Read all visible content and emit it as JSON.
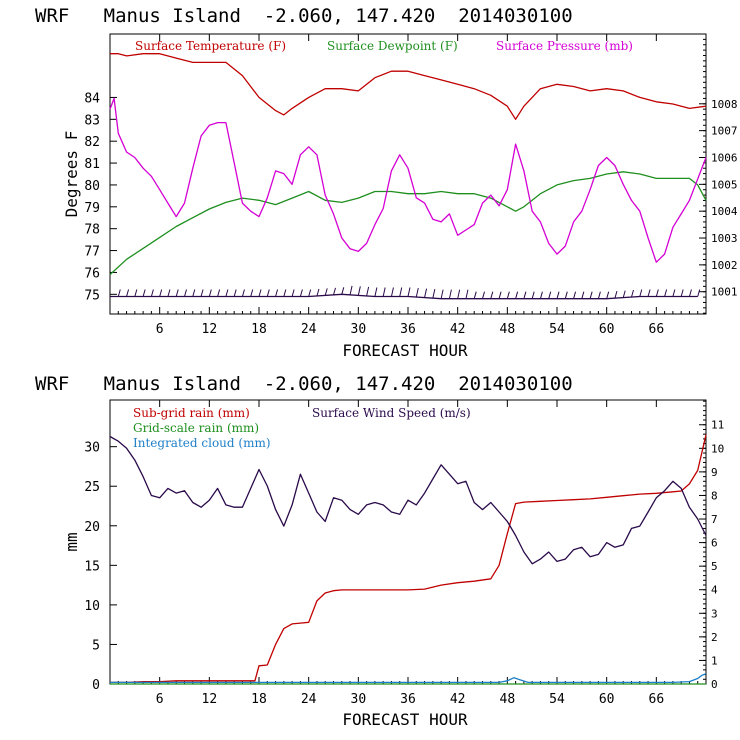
{
  "colors": {
    "temperature": "#c00000",
    "dewpoint": "#1f8f1f",
    "pressure": "#d400d4",
    "wind": "#2a0a4a",
    "subgrid": "#c00000",
    "gridscale": "#1f8f1f",
    "cloud": "#1e7fc8"
  },
  "chart_data": [
    {
      "type": "line",
      "title": "WRF   Manus Island  -2.060, 147.420  2014030100",
      "xlabel": "FORECAST HOUR",
      "ylabel": "Degrees F",
      "xlim": [
        0,
        72
      ],
      "ylim": [
        74.1,
        86.9
      ],
      "y2lim": [
        1000.17,
        1010.6
      ],
      "xticks": [
        "6",
        "12",
        "18",
        "24",
        "30",
        "36",
        "42",
        "48",
        "54",
        "60",
        "66"
      ],
      "yticks": [
        "75",
        "76",
        "77",
        "78",
        "79",
        "80",
        "81",
        "82",
        "83",
        "84"
      ],
      "y2ticks": [
        "1001",
        "1002",
        "1003",
        "1004",
        "1005",
        "1006",
        "1007",
        "1008"
      ],
      "legend_placement": "top",
      "series": [
        {
          "name": "Surface Temperature (F)",
          "axis": "left",
          "color_key": "temperature",
          "x": [
            0,
            1,
            2,
            4,
            6,
            8,
            10,
            12,
            14,
            16,
            18,
            20,
            21,
            22,
            24,
            26,
            28,
            30,
            32,
            34,
            36,
            38,
            40,
            42,
            44,
            46,
            48,
            49,
            50,
            52,
            54,
            56,
            58,
            60,
            62,
            64,
            66,
            68,
            70,
            72
          ],
          "y": [
            86.0,
            86.0,
            85.9,
            86.0,
            86.0,
            85.8,
            85.6,
            85.6,
            85.6,
            85.0,
            84.0,
            83.4,
            83.2,
            83.5,
            84.0,
            84.4,
            84.4,
            84.3,
            84.9,
            85.2,
            85.2,
            85.0,
            84.8,
            84.6,
            84.4,
            84.1,
            83.6,
            83.0,
            83.6,
            84.4,
            84.6,
            84.5,
            84.3,
            84.4,
            84.3,
            84.0,
            83.8,
            83.7,
            83.5,
            83.6
          ]
        },
        {
          "name": "Surface Dewpoint (F)",
          "axis": "left",
          "color_key": "dewpoint",
          "x": [
            0,
            2,
            4,
            6,
            8,
            10,
            12,
            14,
            16,
            18,
            20,
            22,
            24,
            26,
            28,
            30,
            32,
            34,
            36,
            38,
            40,
            42,
            44,
            46,
            48,
            49,
            50,
            52,
            54,
            56,
            58,
            60,
            62,
            64,
            66,
            68,
            70,
            71,
            72
          ],
          "y": [
            75.9,
            76.6,
            77.1,
            77.6,
            78.1,
            78.5,
            78.9,
            79.2,
            79.4,
            79.3,
            79.1,
            79.4,
            79.7,
            79.3,
            79.2,
            79.4,
            79.7,
            79.7,
            79.6,
            79.6,
            79.7,
            79.6,
            79.6,
            79.4,
            79.0,
            78.8,
            79.0,
            79.6,
            80.0,
            80.2,
            80.3,
            80.5,
            80.6,
            80.5,
            80.3,
            80.3,
            80.3,
            80.0,
            79.3
          ]
        },
        {
          "name": "Surface Pressure (mb)",
          "axis": "right",
          "color_key": "pressure",
          "x": [
            0,
            0.5,
            1,
            2,
            3,
            4,
            5,
            6,
            7,
            8,
            9,
            10,
            11,
            12,
            13,
            14,
            15,
            16,
            17,
            18,
            19,
            20,
            21,
            22,
            23,
            24,
            25,
            26,
            27,
            28,
            29,
            30,
            31,
            32,
            33,
            34,
            35,
            36,
            37,
            38,
            39,
            40,
            41,
            42,
            43,
            44,
            45,
            46,
            47,
            48,
            49,
            50,
            51,
            52,
            53,
            54,
            55,
            56,
            57,
            58,
            59,
            60,
            61,
            62,
            63,
            64,
            65,
            66,
            67,
            68,
            69,
            70,
            71,
            72
          ],
          "y": [
            1007.8,
            1008.2,
            1006.9,
            1006.2,
            1006.0,
            1005.6,
            1005.3,
            1004.8,
            1004.3,
            1003.8,
            1004.3,
            1005.6,
            1006.8,
            1007.2,
            1007.3,
            1007.3,
            1005.8,
            1004.3,
            1004.0,
            1003.8,
            1004.5,
            1005.5,
            1005.4,
            1005.0,
            1006.1,
            1006.4,
            1006.1,
            1004.6,
            1003.9,
            1003.0,
            1002.6,
            1002.5,
            1002.8,
            1003.5,
            1004.1,
            1005.5,
            1006.1,
            1005.6,
            1004.5,
            1004.3,
            1003.7,
            1003.6,
            1003.9,
            1003.1,
            1003.3,
            1003.5,
            1004.3,
            1004.6,
            1004.2,
            1004.8,
            1006.5,
            1005.5,
            1004.0,
            1003.6,
            1002.8,
            1002.4,
            1002.7,
            1003.6,
            1004.0,
            1004.8,
            1005.7,
            1006.0,
            1005.7,
            1005.0,
            1004.4,
            1004.0,
            1003.0,
            1002.1,
            1002.4,
            1003.4,
            1003.9,
            1004.4,
            1005.2,
            1006.0
          ]
        },
        {
          "name": "",
          "axis": "left",
          "color_key": "wind",
          "barbs": true,
          "x": [
            0,
            4,
            8,
            12,
            16,
            20,
            24,
            28,
            32,
            36,
            40,
            44,
            48,
            52,
            56,
            60,
            64,
            68,
            71
          ],
          "y": [
            74.9,
            74.9,
            74.9,
            74.9,
            74.9,
            74.9,
            74.9,
            75.0,
            74.9,
            74.9,
            74.8,
            74.8,
            74.8,
            74.8,
            74.8,
            74.8,
            74.9,
            74.9,
            74.9
          ]
        }
      ]
    },
    {
      "type": "line",
      "title": "WRF   Manus Island  -2.060, 147.420  2014030100",
      "xlabel": "FORECAST HOUR",
      "ylabel": "mm",
      "xlim": [
        0,
        72
      ],
      "ylim": [
        0,
        35.9
      ],
      "y2lim": [
        0,
        12.05
      ],
      "xticks": [
        "6",
        "12",
        "18",
        "24",
        "30",
        "36",
        "42",
        "48",
        "54",
        "60",
        "66"
      ],
      "yticks": [
        "0",
        "5",
        "10",
        "15",
        "20",
        "25",
        "30"
      ],
      "y2ticks": [
        "0",
        "1",
        "2",
        "3",
        "4",
        "5",
        "6",
        "7",
        "8",
        "9",
        "10",
        "11"
      ],
      "legend_placement": "top-left",
      "series": [
        {
          "name": "Sub-grid rain (mm)",
          "axis": "left",
          "color_key": "subgrid",
          "x": [
            0,
            2,
            4,
            6,
            8,
            10,
            12,
            14,
            16,
            17.5,
            18,
            19,
            20,
            21,
            22,
            23,
            24,
            25,
            26,
            27,
            28,
            30,
            32,
            34,
            36,
            38,
            40,
            42,
            44,
            46,
            47,
            48,
            49,
            50,
            52,
            54,
            56,
            58,
            60,
            62,
            64,
            66,
            68,
            69,
            70,
            71,
            72
          ],
          "y": [
            0.2,
            0.2,
            0.3,
            0.3,
            0.4,
            0.4,
            0.4,
            0.4,
            0.4,
            0.4,
            2.3,
            2.4,
            5.0,
            7.0,
            7.6,
            7.7,
            7.8,
            10.5,
            11.5,
            11.8,
            11.9,
            11.9,
            11.9,
            11.9,
            11.9,
            12.0,
            12.5,
            12.8,
            13.0,
            13.3,
            15.0,
            19.0,
            22.8,
            23.0,
            23.1,
            23.2,
            23.3,
            23.4,
            23.6,
            23.8,
            24.0,
            24.1,
            24.3,
            24.4,
            25.3,
            27.0,
            31.5
          ]
        },
        {
          "name": "Grid-scale rain (mm)",
          "axis": "left",
          "color_key": "gridscale",
          "x": [
            0,
            72
          ],
          "y": [
            0,
            0
          ]
        },
        {
          "name": "Integrated cloud (mm)",
          "axis": "left",
          "color_key": "cloud",
          "x": [
            0,
            47,
            48,
            48.8,
            49.6,
            50.5,
            60,
            68,
            70,
            71,
            71.5,
            72
          ],
          "y": [
            0.2,
            0.2,
            0.4,
            0.8,
            0.5,
            0.2,
            0.2,
            0.2,
            0.3,
            0.7,
            1.1,
            1.3
          ]
        },
        {
          "name": "Surface Wind Speed (m/s)",
          "axis": "right",
          "color_key": "wind",
          "x": [
            0,
            1,
            2,
            3,
            4,
            5,
            6,
            7,
            8,
            9,
            10,
            11,
            12,
            13,
            14,
            15,
            16,
            17,
            18,
            19,
            20,
            21,
            22,
            23,
            24,
            25,
            26,
            27,
            28,
            29,
            30,
            31,
            32,
            33,
            34,
            35,
            36,
            37,
            38,
            39,
            40,
            41,
            42,
            43,
            44,
            45,
            46,
            47,
            48,
            49,
            50,
            51,
            52,
            53,
            54,
            55,
            56,
            57,
            58,
            59,
            60,
            61,
            62,
            63,
            64,
            65,
            66,
            67,
            68,
            69,
            70,
            71,
            72
          ],
          "y": [
            10.5,
            10.3,
            10.0,
            9.5,
            8.8,
            8.0,
            7.9,
            8.3,
            8.1,
            8.2,
            7.7,
            7.5,
            7.8,
            8.3,
            7.6,
            7.5,
            7.5,
            8.3,
            9.1,
            8.4,
            7.4,
            6.7,
            7.6,
            8.9,
            8.1,
            7.3,
            6.9,
            7.9,
            7.8,
            7.4,
            7.2,
            7.6,
            7.7,
            7.6,
            7.3,
            7.2,
            7.8,
            7.6,
            8.1,
            8.7,
            9.3,
            8.9,
            8.5,
            8.6,
            7.7,
            7.4,
            7.7,
            7.3,
            6.9,
            6.3,
            5.6,
            5.1,
            5.3,
            5.6,
            5.2,
            5.3,
            5.7,
            5.8,
            5.4,
            5.5,
            6.0,
            5.8,
            5.9,
            6.6,
            6.7,
            7.3,
            7.9,
            8.2,
            8.6,
            8.3,
            7.5,
            7.0,
            6.3
          ]
        }
      ]
    }
  ]
}
